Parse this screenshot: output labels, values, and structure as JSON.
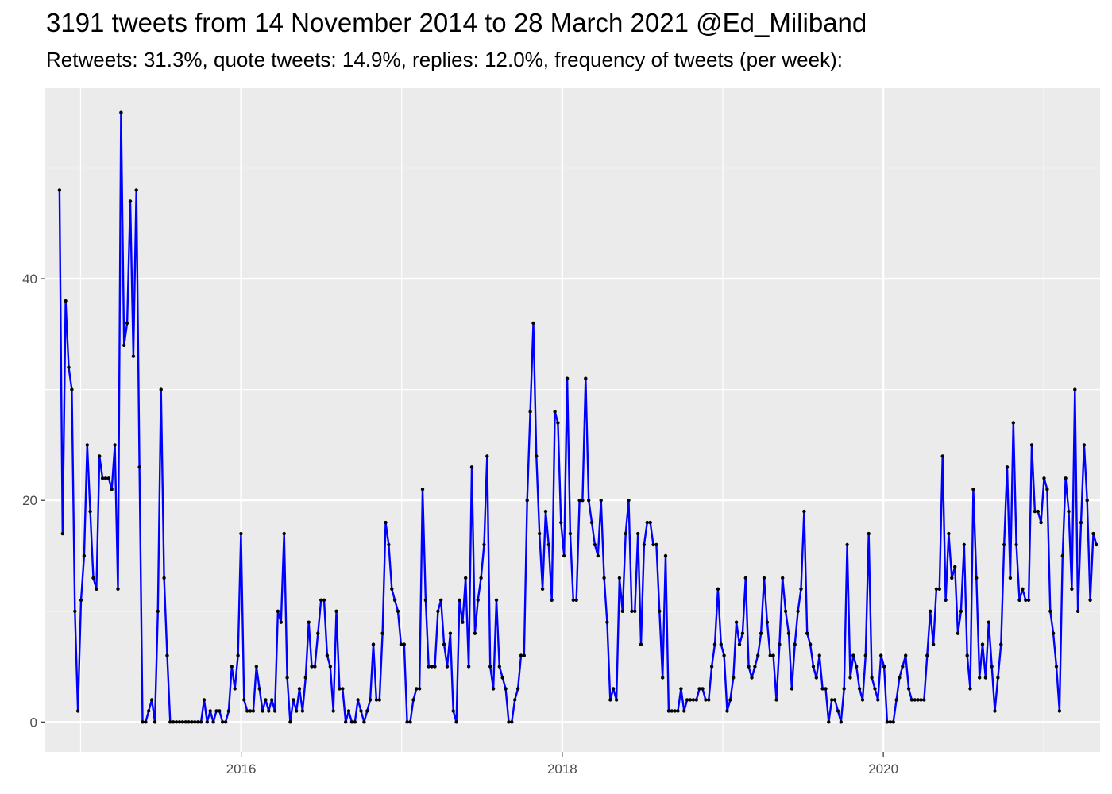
{
  "chart_data": {
    "type": "line",
    "title": "3191 tweets from 14 November 2014 to 28 March 2021 @Ed_Miliband",
    "subtitle": "Retweets: 31.3%, quote tweets: 14.9%, replies: 12.0%, frequency of tweets (per week):",
    "xlabel": "",
    "ylabel": "",
    "x_tick_labels": [
      "2016",
      "2018",
      "2020"
    ],
    "x_tick_years": [
      2016,
      2018,
      2020
    ],
    "y_ticks": [
      0,
      20,
      40
    ],
    "xlim_year": [
      2014.78,
      2021.35
    ],
    "ylim": [
      -2.7,
      57.2
    ],
    "grid": true,
    "line_color": "#0000ff",
    "point_color": "#000000",
    "panel_background": "#ebebeb",
    "series": [
      {
        "x_start": "2014-11-14",
        "x_step_days": 7,
        "values": [
          48,
          17,
          38,
          32,
          30,
          10,
          1,
          11,
          15,
          25,
          19,
          13,
          12,
          24,
          22,
          22,
          22,
          21,
          25,
          12,
          55,
          34,
          36,
          47,
          33,
          48,
          23,
          0,
          0,
          1,
          2,
          0,
          10,
          30,
          13,
          6,
          0,
          0,
          0,
          0,
          0,
          0,
          0,
          0,
          0,
          0,
          0,
          2,
          0,
          1,
          0,
          1,
          1,
          0,
          0,
          1,
          5,
          3,
          6,
          17,
          2,
          1,
          1,
          1,
          5,
          3,
          1,
          2,
          1,
          2,
          1,
          10,
          9,
          17,
          4,
          0,
          2,
          1,
          3,
          1,
          4,
          9,
          5,
          5,
          8,
          11,
          11,
          6,
          5,
          1,
          10,
          3,
          3,
          0,
          1,
          0,
          0,
          2,
          1,
          0,
          1,
          2,
          7,
          2,
          2,
          8,
          18,
          16,
          12,
          11,
          10,
          7,
          7,
          0,
          0,
          2,
          3,
          3,
          21,
          11,
          5,
          5,
          5,
          10,
          11,
          7,
          5,
          8,
          1,
          0,
          11,
          9,
          13,
          5,
          23,
          8,
          11,
          13,
          16,
          24,
          5,
          3,
          11,
          5,
          4,
          3,
          0,
          0,
          2,
          3,
          6,
          6,
          20,
          28,
          36,
          24,
          17,
          12,
          19,
          16,
          11,
          28,
          27,
          18,
          15,
          31,
          17,
          11,
          11,
          20,
          20,
          31,
          20,
          18,
          16,
          15,
          20,
          13,
          9,
          2,
          3,
          2,
          13,
          10,
          17,
          20,
          10,
          10,
          17,
          7,
          16,
          18,
          18,
          16,
          16,
          10,
          4,
          15,
          1,
          1,
          1,
          1,
          3,
          1,
          2,
          2,
          2,
          2,
          3,
          3,
          2,
          2,
          5,
          7,
          12,
          7,
          6,
          1,
          2,
          4,
          9,
          7,
          8,
          13,
          5,
          4,
          5,
          6,
          8,
          13,
          9,
          6,
          6,
          2,
          7,
          13,
          10,
          8,
          3,
          7,
          10,
          12,
          19,
          8,
          7,
          5,
          4,
          6,
          3,
          3,
          0,
          2,
          2,
          1,
          0,
          3,
          16,
          4,
          6,
          5,
          3,
          2,
          6,
          17,
          4,
          3,
          2,
          6,
          5,
          0,
          0,
          0,
          2,
          4,
          5,
          6,
          3,
          2,
          2,
          2,
          2,
          2,
          6,
          10,
          7,
          12,
          12,
          24,
          11,
          17,
          13,
          14,
          8,
          10,
          16,
          6,
          3,
          21,
          13,
          4,
          7,
          4,
          9,
          5,
          1,
          4,
          7,
          16,
          23,
          13,
          27,
          16,
          11,
          12,
          11,
          11,
          25,
          19,
          19,
          18,
          22,
          21,
          10,
          8,
          5,
          1,
          15,
          22,
          19,
          12,
          30,
          10,
          18,
          25,
          20,
          11,
          17,
          16
        ]
      }
    ]
  }
}
